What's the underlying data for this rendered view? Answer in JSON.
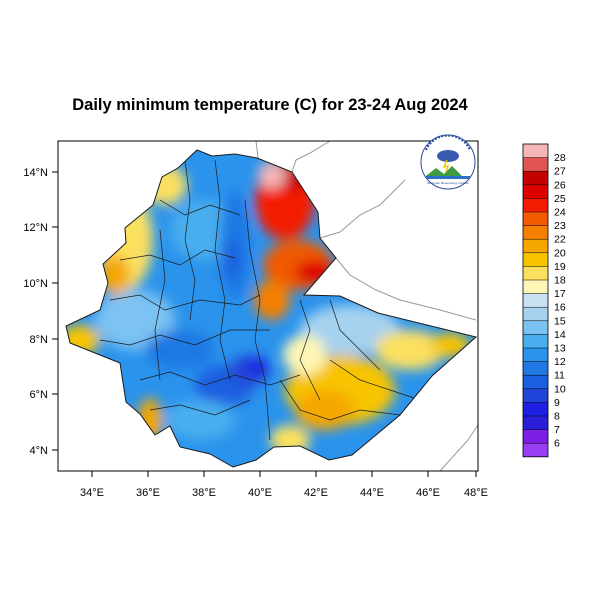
{
  "title": "Daily minimum temperature (C) for 23-24 Aug 2024",
  "map": {
    "lon_range": [
      33,
      48
    ],
    "lat_range": [
      3.2,
      15
    ],
    "x_ticks": [
      "34°E",
      "36°E",
      "38°E",
      "40°E",
      "42°E",
      "44°E",
      "46°E",
      "48°E"
    ],
    "y_ticks": [
      "14°N",
      "12°N",
      "10°N",
      "8°N",
      "6°N",
      "4°N"
    ]
  },
  "colorbar": {
    "labels": [
      "28",
      "27",
      "26",
      "25",
      "24",
      "23",
      "22",
      "20",
      "19",
      "18",
      "17",
      "16",
      "15",
      "14",
      "13",
      "12",
      "11",
      "10",
      "9",
      "8",
      "7",
      "6"
    ],
    "colors": [
      "#f4b6b6",
      "#e05454",
      "#c40000",
      "#dd0000",
      "#f41c00",
      "#f05a00",
      "#f57f00",
      "#f5a700",
      "#f8c400",
      "#fbe060",
      "#fef6b4",
      "#c8e2f4",
      "#a6d2f0",
      "#7bc2f2",
      "#4aaeee",
      "#2a93ec",
      "#1f78e4",
      "#1b5ee0",
      "#2144d8",
      "#1f1ee4",
      "#2b1ed8",
      "#7d1ee4",
      "#9a3ef4"
    ]
  },
  "logo": {
    "caption": "Ethiopian Meteorology Institute"
  }
}
